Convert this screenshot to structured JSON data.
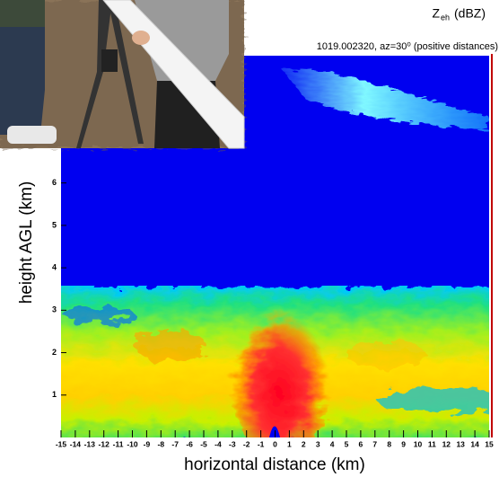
{
  "chart_data": {
    "type": "image",
    "title": "Z",
    "title_subscript": "eh",
    "title_unit": "(dBZ)",
    "subtitle": "1019.002320, az=30⁰ (positive distances)",
    "x_label": "horizontal distance (km)",
    "y_label": "height AGL (km)",
    "xlim": [
      -15,
      15
    ],
    "ylim": [
      0,
      9
    ],
    "xticks": [
      -15,
      -14,
      -13,
      -12,
      -11,
      -10,
      -9,
      -8,
      -7,
      -6,
      -5,
      -4,
      -3,
      -2,
      -1,
      0,
      1,
      2,
      3,
      4,
      5,
      6,
      7,
      8,
      9,
      10,
      11,
      12,
      13,
      14,
      15
    ],
    "yticks": [
      1,
      2,
      3,
      4,
      5,
      6
    ]
  }
}
